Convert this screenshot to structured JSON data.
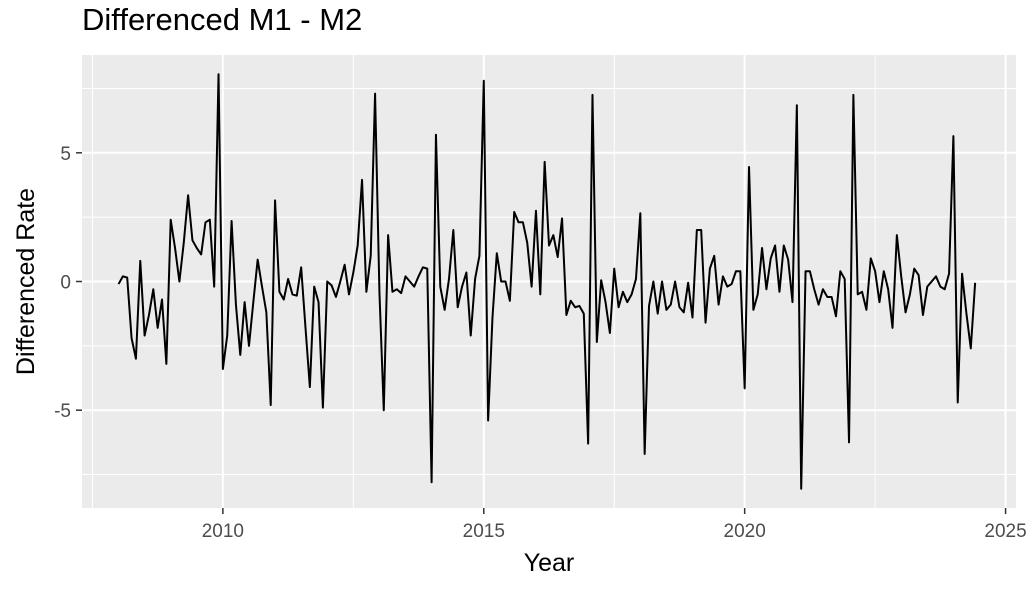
{
  "chart_data": {
    "type": "line",
    "title": "Differenced M1 - M2",
    "xlabel": "Year",
    "ylabel": "Differenced Rate",
    "xlim": [
      2007.3,
      2025.2
    ],
    "ylim": [
      -8.8,
      8.8
    ],
    "x_ticks": [
      2010,
      2015,
      2020,
      2025
    ],
    "y_ticks": [
      -5,
      0,
      5
    ],
    "x_tick_labels": [
      "2010",
      "2015",
      "2020",
      "2025"
    ],
    "y_tick_labels": [
      "-5",
      "0",
      "5"
    ],
    "grid": true,
    "panel_background": "#ebebeb",
    "grid_color": "#ffffff",
    "line_color": "#000000",
    "series": [
      {
        "x_start": 2008.0,
        "x_step": 0.0833333,
        "values": [
          -0.1,
          0.2,
          0.15,
          -2.2,
          -3.0,
          0.8,
          -2.1,
          -1.3,
          -0.3,
          -1.8,
          -0.7,
          -3.2,
          2.4,
          1.3,
          0.0,
          1.5,
          3.35,
          1.6,
          1.3,
          1.05,
          2.3,
          2.4,
          -0.2,
          8.05,
          -3.4,
          -2.1,
          2.35,
          -0.9,
          -2.85,
          -0.8,
          -2.5,
          -0.8,
          0.85,
          -0.2,
          -1.2,
          -4.8,
          3.15,
          -0.4,
          -0.7,
          0.1,
          -0.5,
          -0.55,
          0.55,
          -1.8,
          -4.1,
          -0.2,
          -0.8,
          -4.9,
          0.0,
          -0.15,
          -0.6,
          0.0,
          0.65,
          -0.5,
          0.35,
          1.4,
          3.95,
          -0.4,
          1.0,
          7.3,
          -0.4,
          -5.0,
          1.8,
          -0.4,
          -0.3,
          -0.45,
          0.2,
          0.0,
          -0.2,
          0.2,
          0.55,
          0.5,
          -7.8,
          5.7,
          -0.2,
          -1.1,
          0.1,
          2.0,
          -1.0,
          -0.2,
          0.35,
          -2.1,
          0.1,
          1.0,
          7.8,
          -5.4,
          -1.4,
          1.1,
          0.0,
          0.0,
          -0.75,
          2.7,
          2.3,
          2.3,
          1.5,
          -0.2,
          2.75,
          -0.5,
          4.65,
          1.4,
          1.8,
          0.95,
          2.45,
          -1.3,
          -0.75,
          -1.0,
          -0.95,
          -1.25,
          -6.3,
          7.25,
          -2.35,
          0.05,
          -0.8,
          -2.0,
          0.5,
          -1.0,
          -0.4,
          -0.8,
          -0.5,
          0.1,
          2.65,
          -6.7,
          -0.95,
          0.0,
          -1.25,
          0.0,
          -1.1,
          -0.9,
          0.0,
          -1.0,
          -1.2,
          -0.05,
          -1.4,
          2.0,
          2.0,
          -1.6,
          0.5,
          1.0,
          -0.9,
          0.2,
          -0.2,
          -0.1,
          0.4,
          0.4,
          -4.15,
          4.45,
          -1.1,
          -0.5,
          1.3,
          -0.3,
          0.9,
          1.4,
          -0.4,
          1.4,
          0.85,
          -0.8,
          6.85,
          -8.05,
          0.4,
          0.4,
          -0.3,
          -0.9,
          -0.3,
          -0.6,
          -0.6,
          -1.35,
          0.4,
          0.1,
          -6.25,
          7.25,
          -0.5,
          -0.4,
          -1.1,
          0.9,
          0.4,
          -0.8,
          0.4,
          -0.3,
          -1.8,
          1.8,
          0.2,
          -1.2,
          -0.5,
          0.5,
          0.25,
          -1.3,
          -0.2,
          0.0,
          0.2,
          -0.2,
          -0.3,
          0.3,
          5.65,
          -4.7,
          0.3,
          -1.25,
          -2.6,
          -0.05
        ]
      }
    ]
  }
}
